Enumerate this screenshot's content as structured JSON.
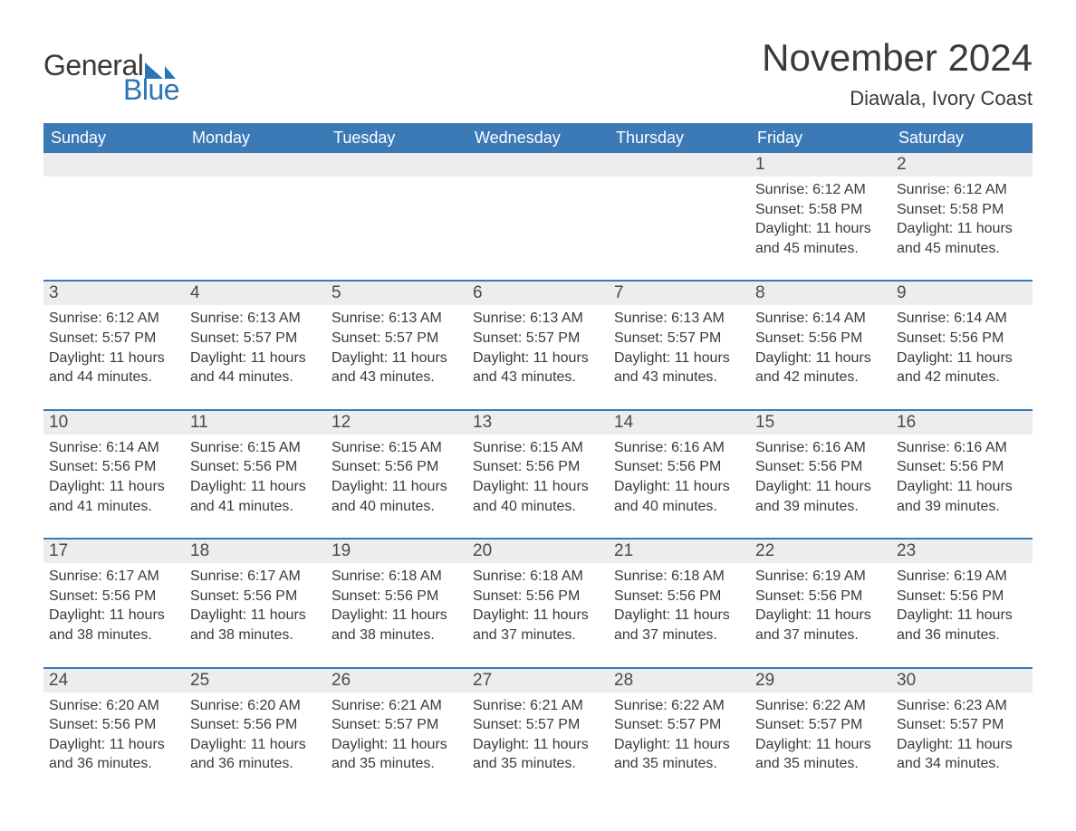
{
  "logo": {
    "text1": "General",
    "text2": "Blue",
    "sail_color": "#2b74b8"
  },
  "title": "November 2024",
  "location": "Diawala, Ivory Coast",
  "header_bg": "#3b79b7",
  "header_fg": "#ffffff",
  "daynum_bg": "#ededed",
  "rule_color": "#3b79b7",
  "text_color": "#3a3a3a",
  "weekdays": [
    "Sunday",
    "Monday",
    "Tuesday",
    "Wednesday",
    "Thursday",
    "Friday",
    "Saturday"
  ],
  "weeks": [
    {
      "days": [
        {
          "num": "",
          "sunrise": "",
          "sunset": "",
          "daylight": ""
        },
        {
          "num": "",
          "sunrise": "",
          "sunset": "",
          "daylight": ""
        },
        {
          "num": "",
          "sunrise": "",
          "sunset": "",
          "daylight": ""
        },
        {
          "num": "",
          "sunrise": "",
          "sunset": "",
          "daylight": ""
        },
        {
          "num": "",
          "sunrise": "",
          "sunset": "",
          "daylight": ""
        },
        {
          "num": "1",
          "sunrise": "Sunrise: 6:12 AM",
          "sunset": "Sunset: 5:58 PM",
          "daylight": "Daylight: 11 hours and 45 minutes."
        },
        {
          "num": "2",
          "sunrise": "Sunrise: 6:12 AM",
          "sunset": "Sunset: 5:58 PM",
          "daylight": "Daylight: 11 hours and 45 minutes."
        }
      ]
    },
    {
      "days": [
        {
          "num": "3",
          "sunrise": "Sunrise: 6:12 AM",
          "sunset": "Sunset: 5:57 PM",
          "daylight": "Daylight: 11 hours and 44 minutes."
        },
        {
          "num": "4",
          "sunrise": "Sunrise: 6:13 AM",
          "sunset": "Sunset: 5:57 PM",
          "daylight": "Daylight: 11 hours and 44 minutes."
        },
        {
          "num": "5",
          "sunrise": "Sunrise: 6:13 AM",
          "sunset": "Sunset: 5:57 PM",
          "daylight": "Daylight: 11 hours and 43 minutes."
        },
        {
          "num": "6",
          "sunrise": "Sunrise: 6:13 AM",
          "sunset": "Sunset: 5:57 PM",
          "daylight": "Daylight: 11 hours and 43 minutes."
        },
        {
          "num": "7",
          "sunrise": "Sunrise: 6:13 AM",
          "sunset": "Sunset: 5:57 PM",
          "daylight": "Daylight: 11 hours and 43 minutes."
        },
        {
          "num": "8",
          "sunrise": "Sunrise: 6:14 AM",
          "sunset": "Sunset: 5:56 PM",
          "daylight": "Daylight: 11 hours and 42 minutes."
        },
        {
          "num": "9",
          "sunrise": "Sunrise: 6:14 AM",
          "sunset": "Sunset: 5:56 PM",
          "daylight": "Daylight: 11 hours and 42 minutes."
        }
      ]
    },
    {
      "days": [
        {
          "num": "10",
          "sunrise": "Sunrise: 6:14 AM",
          "sunset": "Sunset: 5:56 PM",
          "daylight": "Daylight: 11 hours and 41 minutes."
        },
        {
          "num": "11",
          "sunrise": "Sunrise: 6:15 AM",
          "sunset": "Sunset: 5:56 PM",
          "daylight": "Daylight: 11 hours and 41 minutes."
        },
        {
          "num": "12",
          "sunrise": "Sunrise: 6:15 AM",
          "sunset": "Sunset: 5:56 PM",
          "daylight": "Daylight: 11 hours and 40 minutes."
        },
        {
          "num": "13",
          "sunrise": "Sunrise: 6:15 AM",
          "sunset": "Sunset: 5:56 PM",
          "daylight": "Daylight: 11 hours and 40 minutes."
        },
        {
          "num": "14",
          "sunrise": "Sunrise: 6:16 AM",
          "sunset": "Sunset: 5:56 PM",
          "daylight": "Daylight: 11 hours and 40 minutes."
        },
        {
          "num": "15",
          "sunrise": "Sunrise: 6:16 AM",
          "sunset": "Sunset: 5:56 PM",
          "daylight": "Daylight: 11 hours and 39 minutes."
        },
        {
          "num": "16",
          "sunrise": "Sunrise: 6:16 AM",
          "sunset": "Sunset: 5:56 PM",
          "daylight": "Daylight: 11 hours and 39 minutes."
        }
      ]
    },
    {
      "days": [
        {
          "num": "17",
          "sunrise": "Sunrise: 6:17 AM",
          "sunset": "Sunset: 5:56 PM",
          "daylight": "Daylight: 11 hours and 38 minutes."
        },
        {
          "num": "18",
          "sunrise": "Sunrise: 6:17 AM",
          "sunset": "Sunset: 5:56 PM",
          "daylight": "Daylight: 11 hours and 38 minutes."
        },
        {
          "num": "19",
          "sunrise": "Sunrise: 6:18 AM",
          "sunset": "Sunset: 5:56 PM",
          "daylight": "Daylight: 11 hours and 38 minutes."
        },
        {
          "num": "20",
          "sunrise": "Sunrise: 6:18 AM",
          "sunset": "Sunset: 5:56 PM",
          "daylight": "Daylight: 11 hours and 37 minutes."
        },
        {
          "num": "21",
          "sunrise": "Sunrise: 6:18 AM",
          "sunset": "Sunset: 5:56 PM",
          "daylight": "Daylight: 11 hours and 37 minutes."
        },
        {
          "num": "22",
          "sunrise": "Sunrise: 6:19 AM",
          "sunset": "Sunset: 5:56 PM",
          "daylight": "Daylight: 11 hours and 37 minutes."
        },
        {
          "num": "23",
          "sunrise": "Sunrise: 6:19 AM",
          "sunset": "Sunset: 5:56 PM",
          "daylight": "Daylight: 11 hours and 36 minutes."
        }
      ]
    },
    {
      "days": [
        {
          "num": "24",
          "sunrise": "Sunrise: 6:20 AM",
          "sunset": "Sunset: 5:56 PM",
          "daylight": "Daylight: 11 hours and 36 minutes."
        },
        {
          "num": "25",
          "sunrise": "Sunrise: 6:20 AM",
          "sunset": "Sunset: 5:56 PM",
          "daylight": "Daylight: 11 hours and 36 minutes."
        },
        {
          "num": "26",
          "sunrise": "Sunrise: 6:21 AM",
          "sunset": "Sunset: 5:57 PM",
          "daylight": "Daylight: 11 hours and 35 minutes."
        },
        {
          "num": "27",
          "sunrise": "Sunrise: 6:21 AM",
          "sunset": "Sunset: 5:57 PM",
          "daylight": "Daylight: 11 hours and 35 minutes."
        },
        {
          "num": "28",
          "sunrise": "Sunrise: 6:22 AM",
          "sunset": "Sunset: 5:57 PM",
          "daylight": "Daylight: 11 hours and 35 minutes."
        },
        {
          "num": "29",
          "sunrise": "Sunrise: 6:22 AM",
          "sunset": "Sunset: 5:57 PM",
          "daylight": "Daylight: 11 hours and 35 minutes."
        },
        {
          "num": "30",
          "sunrise": "Sunrise: 6:23 AM",
          "sunset": "Sunset: 5:57 PM",
          "daylight": "Daylight: 11 hours and 34 minutes."
        }
      ]
    }
  ]
}
